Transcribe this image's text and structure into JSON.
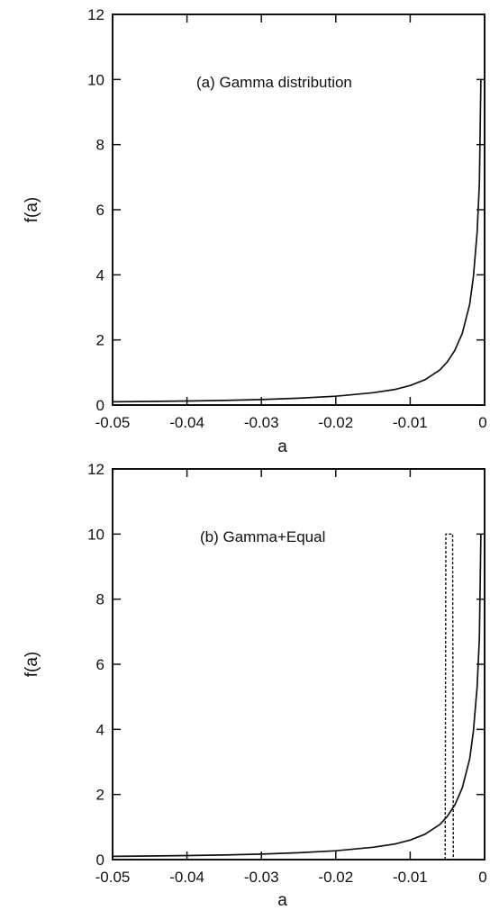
{
  "chart_data": [
    {
      "type": "line",
      "annotation": "(a) Gamma distribution",
      "xlabel": "a",
      "ylabel": "f(a)",
      "xlim": [
        -0.05,
        0
      ],
      "ylim": [
        0,
        12
      ],
      "xticks": [
        -0.05,
        -0.04,
        -0.03,
        -0.02,
        -0.01,
        0
      ],
      "xtick_labels": [
        "-0.05",
        "-0.04",
        "-0.03",
        "-0.02",
        "-0.01",
        "0"
      ],
      "yticks": [
        0,
        2,
        4,
        6,
        8,
        10,
        12
      ],
      "ytick_labels": [
        "0",
        "2",
        "4",
        "6",
        "8",
        "10",
        "12"
      ],
      "grid": false,
      "series": [
        {
          "style": "solid",
          "color": "#111111",
          "x": [
            -0.05,
            -0.045,
            -0.04,
            -0.035,
            -0.03,
            -0.025,
            -0.02,
            -0.015,
            -0.012,
            -0.01,
            -0.008,
            -0.006,
            -0.005,
            -0.004,
            -0.003,
            -0.002,
            -0.0015,
            -0.001,
            -0.0007,
            -0.0005
          ],
          "y": [
            0.1,
            0.11,
            0.125,
            0.14,
            0.17,
            0.21,
            0.27,
            0.38,
            0.48,
            0.6,
            0.78,
            1.08,
            1.33,
            1.68,
            2.2,
            3.1,
            3.95,
            5.3,
            6.8,
            10.0
          ]
        }
      ]
    },
    {
      "type": "line",
      "annotation": "(b) Gamma+Equal",
      "xlabel": "a",
      "ylabel": "f(a)",
      "xlim": [
        -0.05,
        0
      ],
      "ylim": [
        0,
        12
      ],
      "xticks": [
        -0.05,
        -0.04,
        -0.03,
        -0.02,
        -0.01,
        0
      ],
      "xtick_labels": [
        "-0.05",
        "-0.04",
        "-0.03",
        "-0.02",
        "-0.01",
        "0"
      ],
      "yticks": [
        0,
        2,
        4,
        6,
        8,
        10,
        12
      ],
      "ytick_labels": [
        "0",
        "2",
        "4",
        "6",
        "8",
        "10",
        "12"
      ],
      "grid": false,
      "series": [
        {
          "style": "solid",
          "color": "#111111",
          "x": [
            -0.05,
            -0.045,
            -0.04,
            -0.035,
            -0.03,
            -0.025,
            -0.02,
            -0.015,
            -0.012,
            -0.01,
            -0.008,
            -0.006,
            -0.005,
            -0.004,
            -0.003,
            -0.002,
            -0.0015,
            -0.001,
            -0.0007,
            -0.0005
          ],
          "y": [
            0.1,
            0.11,
            0.125,
            0.14,
            0.17,
            0.21,
            0.27,
            0.38,
            0.48,
            0.6,
            0.78,
            1.08,
            1.33,
            1.68,
            2.2,
            3.1,
            3.95,
            5.3,
            6.8,
            10.0
          ]
        },
        {
          "style": "dashed",
          "color": "#111111",
          "x": [
            -0.0053,
            -0.0052,
            -0.0043,
            -0.0042
          ],
          "y": [
            0,
            10,
            10,
            0
          ]
        }
      ]
    }
  ]
}
